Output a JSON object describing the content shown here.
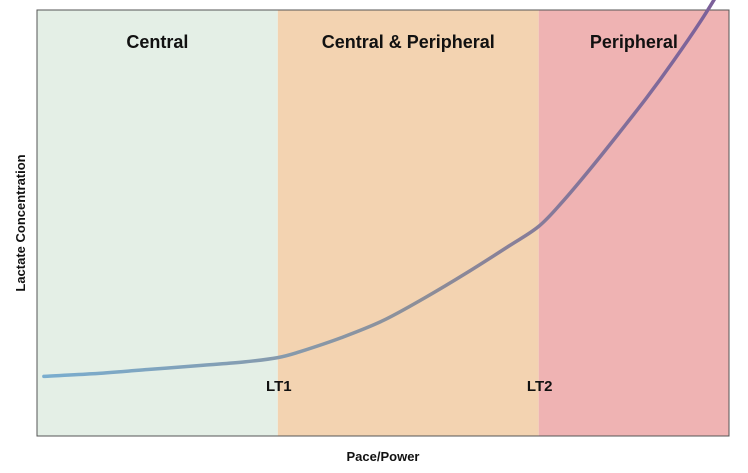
{
  "chart_data": {
    "type": "line",
    "title": "",
    "xlabel": "Pace/Power",
    "ylabel": "Lactate Concentration",
    "xlim": [
      0,
      100
    ],
    "ylim": [
      0,
      100
    ],
    "ticks_shown": false,
    "grid": false,
    "legend": "none",
    "zones": [
      {
        "name": "Central",
        "x_start": 0,
        "x_end": 34.8,
        "color": "#e4efe6"
      },
      {
        "name": "Central & Peripheral",
        "x_start": 34.8,
        "x_end": 72.5,
        "color": "#f3d3b1"
      },
      {
        "name": "Peripheral",
        "x_start": 72.5,
        "x_end": 100,
        "color": "#efb3b3"
      }
    ],
    "markers": [
      {
        "label": "LT1",
        "x": 34.8
      },
      {
        "label": "LT2",
        "x": 72.5
      }
    ],
    "series": [
      {
        "gradient_colors": [
          "#79aed0",
          "#8d8f99",
          "#7b5e9a"
        ],
        "x": [
          1,
          8,
          16,
          24,
          30,
          34.8,
          38,
          44,
          50,
          56,
          62,
          68,
          72.5,
          76,
          80,
          84,
          88,
          92,
          96,
          99
        ],
        "y": [
          14,
          14.6,
          15.6,
          16.6,
          17.4,
          18.4,
          19.8,
          23.1,
          27.1,
          32.4,
          38.2,
          44.4,
          49.2,
          55.1,
          62.8,
          70.9,
          79.2,
          88.1,
          97.6,
          105.5
        ]
      }
    ]
  }
}
